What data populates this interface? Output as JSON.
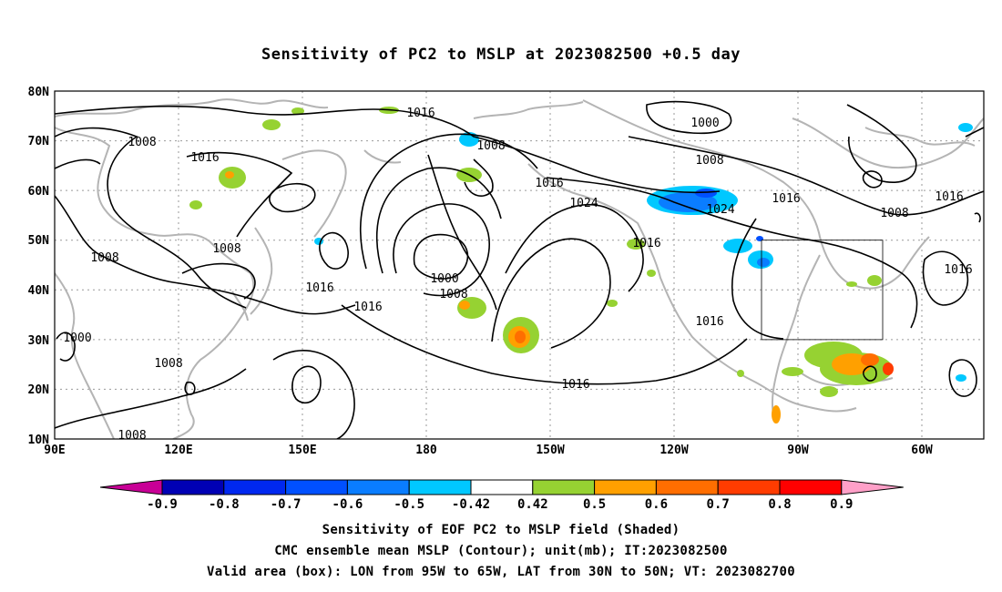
{
  "title": "Sensitivity of PC2 to MSLP at 2023082500 +0.5 day",
  "lat_labels": [
    "80N",
    "70N",
    "60N",
    "50N",
    "40N",
    "30N",
    "20N",
    "10N"
  ],
  "lon_labels": [
    "90E",
    "120E",
    "150E",
    "180",
    "150W",
    "120W",
    "90W",
    "60W"
  ],
  "contour_labels": [
    "1016",
    "1008",
    "1016",
    "1008",
    "1000",
    "1008",
    "1016",
    "1024",
    "1008",
    "1016",
    "1016",
    "1008",
    "1016",
    "1008",
    "1016",
    "1016",
    "1000",
    "1008",
    "1016",
    "1024",
    "1016",
    "1016",
    "1000",
    "1008",
    "1008",
    "1016"
  ],
  "colorbar_labels": [
    "-0.9",
    "-0.8",
    "-0.7",
    "-0.6",
    "-0.5",
    "-0.42",
    "0.42",
    "0.5",
    "0.6",
    "0.7",
    "0.8",
    "0.9"
  ],
  "colorbar_colors": [
    "#0000b4",
    "#0028f0",
    "#0050ff",
    "#0a7dff",
    "#00c8ff",
    "#ffffff",
    "#96d232",
    "#ffa000",
    "#ff6e00",
    "#ff3c00",
    "#ff0000"
  ],
  "colorbar_under": "#c80096",
  "colorbar_over": "#ffa0c8",
  "captions": [
    "Sensitivity of EOF PC2 to MSLP field (Shaded)",
    "CMC ensemble mean MSLP (Contour); unit(mb); IT:2023082500",
    "Valid area (box): LON from 95W to 65W, LAT from 30N to 50N; VT: 2023082700"
  ]
}
